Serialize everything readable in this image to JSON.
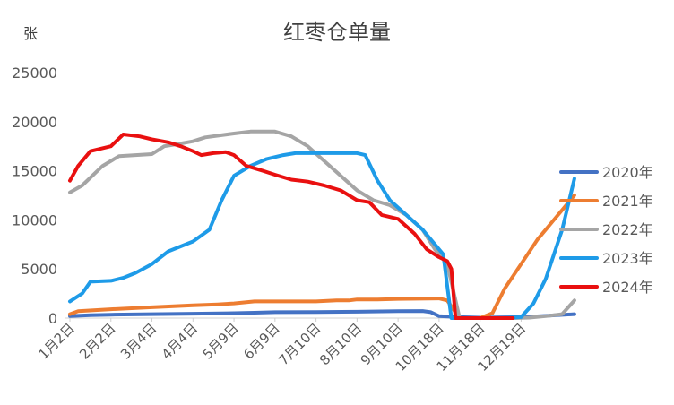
{
  "chart_data": {
    "type": "line",
    "title": "红枣仓单量",
    "ylabel": "张",
    "xlabel": "",
    "ylim": [
      0,
      25000
    ],
    "yticks": [
      0,
      5000,
      10000,
      15000,
      20000,
      25000
    ],
    "grid": false,
    "legend_position": "right",
    "x_ticks": [
      "1月2日",
      "2月2日",
      "3月4日",
      "4月4日",
      "5月9日",
      "6月9日",
      "7月10日",
      "8月10日",
      "9月10日",
      "10月18日",
      "11月18日",
      "12月19日"
    ],
    "series": [
      {
        "name": "2020年",
        "color": "#4472C4",
        "points": [
          [
            0,
            200
          ],
          [
            0.5,
            300
          ],
          [
            1,
            350
          ],
          [
            2,
            400
          ],
          [
            3,
            450
          ],
          [
            4,
            500
          ],
          [
            4.5,
            550
          ],
          [
            5,
            600
          ],
          [
            6,
            620
          ],
          [
            7,
            650
          ],
          [
            8,
            700
          ],
          [
            8.6,
            720
          ],
          [
            8.8,
            600
          ],
          [
            9,
            200
          ],
          [
            9.5,
            100
          ],
          [
            10,
            50
          ],
          [
            11,
            100
          ],
          [
            11.5,
            200
          ],
          [
            12.3,
            400
          ]
        ]
      },
      {
        "name": "2021年",
        "color": "#ED7D31",
        "points": [
          [
            0,
            400
          ],
          [
            0.2,
            700
          ],
          [
            1,
            900
          ],
          [
            2,
            1100
          ],
          [
            3,
            1300
          ],
          [
            3.6,
            1400
          ],
          [
            4,
            1500
          ],
          [
            4.5,
            1700
          ],
          [
            5,
            1700
          ],
          [
            5.5,
            1700
          ],
          [
            6,
            1700
          ],
          [
            6.5,
            1800
          ],
          [
            6.8,
            1800
          ],
          [
            7,
            1900
          ],
          [
            7.5,
            1900
          ],
          [
            8,
            1950
          ],
          [
            9,
            2000
          ],
          [
            9.2,
            1800
          ],
          [
            9.5,
            0
          ],
          [
            10,
            0
          ],
          [
            10.3,
            500
          ],
          [
            10.6,
            3000
          ],
          [
            11,
            5500
          ],
          [
            11.4,
            8000
          ],
          [
            11.8,
            10000
          ],
          [
            12.3,
            12500
          ]
        ]
      },
      {
        "name": "2022年",
        "color": "#A5A5A5",
        "points": [
          [
            0,
            12800
          ],
          [
            0.3,
            13500
          ],
          [
            0.8,
            15500
          ],
          [
            1.2,
            16500
          ],
          [
            2,
            16700
          ],
          [
            2.3,
            17500
          ],
          [
            2.6,
            17700
          ],
          [
            3,
            18000
          ],
          [
            3.3,
            18400
          ],
          [
            4,
            18800
          ],
          [
            4.4,
            19000
          ],
          [
            5,
            19000
          ],
          [
            5.4,
            18500
          ],
          [
            5.8,
            17500
          ],
          [
            6.2,
            16000
          ],
          [
            6.6,
            14500
          ],
          [
            7,
            13000
          ],
          [
            7.4,
            12000
          ],
          [
            7.8,
            11500
          ],
          [
            8.2,
            10500
          ],
          [
            8.6,
            9000
          ],
          [
            8.9,
            7000
          ],
          [
            9.2,
            5500
          ],
          [
            9.5,
            0
          ],
          [
            10,
            0
          ],
          [
            10.8,
            0
          ],
          [
            11.2,
            50
          ],
          [
            11.6,
            200
          ],
          [
            12,
            400
          ],
          [
            12.3,
            1800
          ]
        ]
      },
      {
        "name": "2023年",
        "color": "#1E9BE8",
        "points": [
          [
            0,
            1700
          ],
          [
            0.3,
            2500
          ],
          [
            0.5,
            3700
          ],
          [
            1,
            3800
          ],
          [
            1.3,
            4100
          ],
          [
            1.6,
            4600
          ],
          [
            2,
            5500
          ],
          [
            2.4,
            6800
          ],
          [
            3,
            7800
          ],
          [
            3.4,
            9000
          ],
          [
            3.7,
            12000
          ],
          [
            4,
            14500
          ],
          [
            4.4,
            15500
          ],
          [
            4.8,
            16200
          ],
          [
            5.2,
            16600
          ],
          [
            5.5,
            16800
          ],
          [
            6,
            16800
          ],
          [
            6.5,
            16800
          ],
          [
            7,
            16800
          ],
          [
            7.2,
            16600
          ],
          [
            7.5,
            14000
          ],
          [
            7.8,
            12000
          ],
          [
            8.2,
            10500
          ],
          [
            8.6,
            9000
          ],
          [
            8.9,
            7500
          ],
          [
            9.1,
            6500
          ],
          [
            9.3,
            0
          ],
          [
            10,
            0
          ],
          [
            10.6,
            0
          ],
          [
            11,
            100
          ],
          [
            11.3,
            1500
          ],
          [
            11.6,
            4000
          ],
          [
            12,
            9000
          ],
          [
            12.3,
            14200
          ]
        ]
      },
      {
        "name": "2024年",
        "color": "#E91010",
        "points": [
          [
            0,
            14000
          ],
          [
            0.2,
            15500
          ],
          [
            0.5,
            17000
          ],
          [
            1,
            17500
          ],
          [
            1.3,
            18700
          ],
          [
            1.7,
            18500
          ],
          [
            2,
            18200
          ],
          [
            2.4,
            17900
          ],
          [
            2.7,
            17500
          ],
          [
            3,
            17000
          ],
          [
            3.2,
            16600
          ],
          [
            3.5,
            16800
          ],
          [
            3.8,
            16900
          ],
          [
            4,
            16600
          ],
          [
            4.3,
            15500
          ],
          [
            4.7,
            15000
          ],
          [
            5,
            14600
          ],
          [
            5.4,
            14100
          ],
          [
            5.8,
            13900
          ],
          [
            6.2,
            13500
          ],
          [
            6.6,
            13000
          ],
          [
            7,
            12000
          ],
          [
            7.3,
            11800
          ],
          [
            7.6,
            10500
          ],
          [
            8,
            10100
          ],
          [
            8.4,
            8600
          ],
          [
            8.7,
            7000
          ],
          [
            9,
            6200
          ],
          [
            9.2,
            5800
          ],
          [
            9.3,
            5000
          ],
          [
            9.4,
            0
          ],
          [
            10,
            0
          ],
          [
            10.8,
            0
          ]
        ]
      }
    ]
  }
}
